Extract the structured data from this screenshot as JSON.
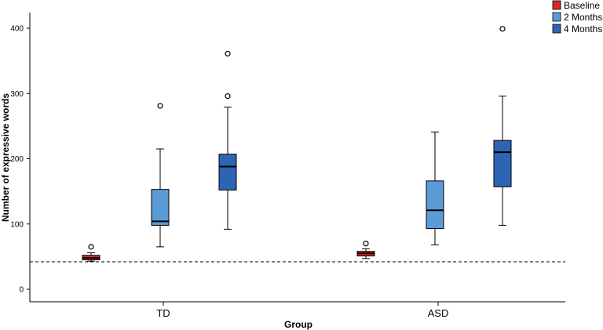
{
  "chart_data": {
    "type": "boxplot",
    "xlabel": "Group",
    "ylabel": "Number of expressive words",
    "ylim": [
      -20,
      420
    ],
    "yticks": [
      0,
      100,
      200,
      300,
      400
    ],
    "categories": [
      "TD",
      "ASD"
    ],
    "reference_line": 42,
    "series": [
      {
        "name": "Baseline",
        "color": "#d7282f",
        "boxes": [
          {
            "category": "TD",
            "whisker_low": 43,
            "q1": 45,
            "median": 48,
            "q3": 52,
            "whisker_high": 56,
            "outliers": [
              65
            ]
          },
          {
            "category": "ASD",
            "whisker_low": 47,
            "q1": 51,
            "median": 55,
            "q3": 58,
            "whisker_high": 62,
            "outliers": [
              70
            ]
          }
        ]
      },
      {
        "name": "2 Months",
        "color": "#5b9bd5",
        "boxes": [
          {
            "category": "TD",
            "whisker_low": 65,
            "q1": 98,
            "median": 104,
            "q3": 153,
            "whisker_high": 215,
            "outliers": [
              281
            ]
          },
          {
            "category": "ASD",
            "whisker_low": 68,
            "q1": 93,
            "median": 121,
            "q3": 166,
            "whisker_high": 241,
            "outliers": []
          }
        ]
      },
      {
        "name": "4 Months",
        "color": "#2e64b4",
        "boxes": [
          {
            "category": "TD",
            "whisker_low": 92,
            "q1": 152,
            "median": 188,
            "q3": 207,
            "whisker_high": 279,
            "outliers": [
              296,
              361
            ]
          },
          {
            "category": "ASD",
            "whisker_low": 98,
            "q1": 157,
            "median": 210,
            "q3": 228,
            "whisker_high": 296,
            "outliers": [
              399
            ]
          }
        ]
      }
    ]
  }
}
